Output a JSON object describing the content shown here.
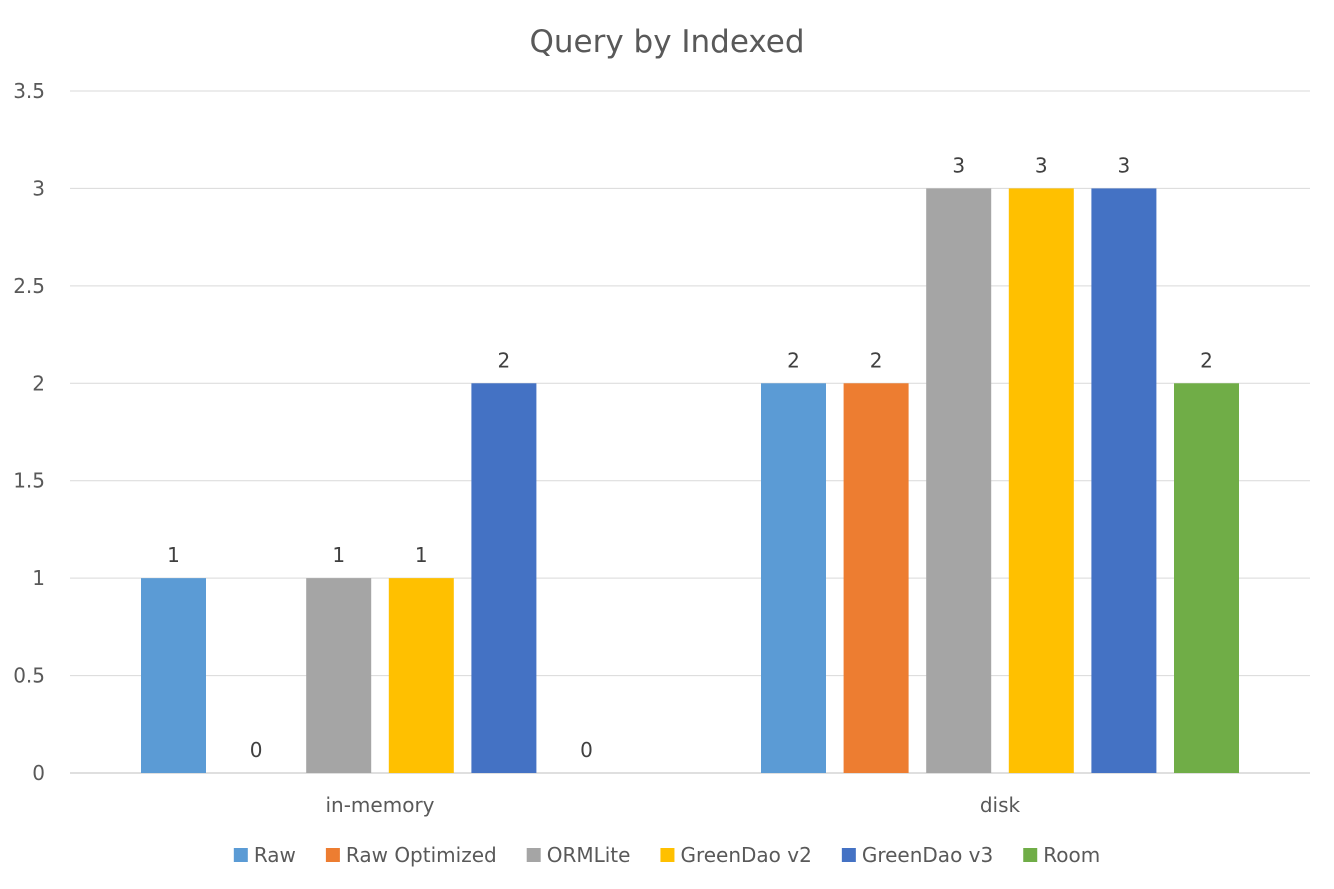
{
  "chart_data": {
    "type": "bar",
    "title": "Query by Indexed",
    "xlabel": "",
    "ylabel": "",
    "categories": [
      "in-memory",
      "disk"
    ],
    "ylim": [
      0,
      3.5
    ],
    "yticks": [
      "0",
      "0.5",
      "1",
      "1.5",
      "2",
      "2.5",
      "3",
      "3.5"
    ],
    "grid": true,
    "legend": "bottom",
    "series": [
      {
        "name": "Raw",
        "color": "#5B9BD5",
        "values": [
          1,
          2
        ]
      },
      {
        "name": "Raw Optimized",
        "color": "#ED7D31",
        "values": [
          0,
          2
        ]
      },
      {
        "name": "ORMLite",
        "color": "#A5A5A5",
        "values": [
          1,
          3
        ]
      },
      {
        "name": "GreenDao v2",
        "color": "#FFC000",
        "values": [
          1,
          3
        ]
      },
      {
        "name": "GreenDao v3",
        "color": "#4472C4",
        "values": [
          2,
          3
        ]
      },
      {
        "name": "Room",
        "color": "#70AD47",
        "values": [
          0,
          2
        ]
      }
    ]
  }
}
